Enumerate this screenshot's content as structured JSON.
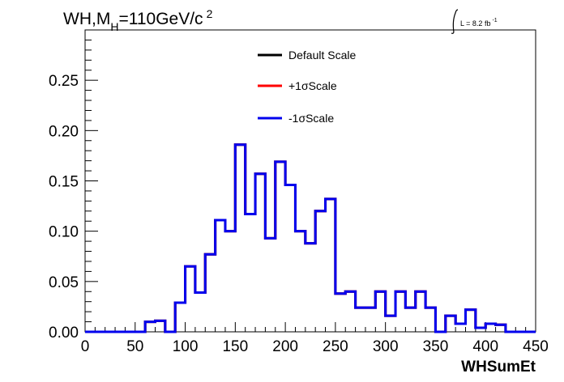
{
  "chart_data": {
    "type": "line",
    "title_parts": {
      "main": "WH,M",
      "sub": "H",
      "rest": "=110GeV/c",
      "sup": "2"
    },
    "lumi": {
      "text": "L = 8.2 fb",
      "sup": "-1"
    },
    "xlabel": "WHSumEt",
    "ylabel": "",
    "xlim": [
      0,
      450
    ],
    "ylim": [
      0,
      0.3
    ],
    "x_ticks": [
      0,
      50,
      100,
      150,
      200,
      250,
      300,
      350,
      400,
      450
    ],
    "x_tick_labels": [
      "0",
      "50",
      "100",
      "150",
      "200",
      "250",
      "300",
      "350",
      "400",
      "450"
    ],
    "y_ticks": [
      0,
      0.05,
      0.1,
      0.15,
      0.2,
      0.25
    ],
    "y_tick_labels": [
      "0.00",
      "0.05",
      "0.10",
      "0.15",
      "0.20",
      "0.25"
    ],
    "grid": false,
    "legend_position": "top-center",
    "bin_edges": [
      0,
      10,
      20,
      30,
      40,
      50,
      60,
      70,
      80,
      90,
      100,
      110,
      120,
      130,
      140,
      150,
      160,
      170,
      180,
      190,
      200,
      210,
      220,
      230,
      240,
      250,
      260,
      270,
      280,
      290,
      300,
      310,
      320,
      330,
      340,
      350,
      360,
      370,
      380,
      390,
      400,
      410,
      420,
      430,
      440,
      450
    ],
    "series": [
      {
        "name": "Default Scale",
        "color": "#000000",
        "values": [
          0,
          0,
          0,
          0,
          0,
          0,
          0.01,
          0.011,
          0,
          0.029,
          0.065,
          0.039,
          0.077,
          0.111,
          0.1,
          0.186,
          0.117,
          0.157,
          0.093,
          0.169,
          0.146,
          0.1,
          0.088,
          0.12,
          0.132,
          0.038,
          0.04,
          0.024,
          0.024,
          0.04,
          0.016,
          0.04,
          0.024,
          0.04,
          0.024,
          0,
          0.016,
          0.008,
          0.022,
          0.004,
          0.008,
          0.007,
          0,
          0,
          0,
          0
        ]
      },
      {
        "name": "+1σScale",
        "color": "#ff0000",
        "values": [
          0,
          0,
          0,
          0,
          0,
          0,
          0.01,
          0.011,
          0,
          0.029,
          0.065,
          0.039,
          0.077,
          0.111,
          0.1,
          0.186,
          0.117,
          0.157,
          0.093,
          0.169,
          0.146,
          0.1,
          0.088,
          0.12,
          0.132,
          0.038,
          0.04,
          0.024,
          0.024,
          0.04,
          0.016,
          0.04,
          0.024,
          0.04,
          0.024,
          0,
          0.016,
          0.008,
          0.022,
          0.004,
          0.008,
          0.007,
          0,
          0,
          0,
          0
        ]
      },
      {
        "name": "-1σScale",
        "color": "#0000ee",
        "values": [
          0,
          0,
          0,
          0,
          0,
          0,
          0.01,
          0.011,
          0,
          0.029,
          0.065,
          0.039,
          0.077,
          0.111,
          0.1,
          0.186,
          0.117,
          0.157,
          0.093,
          0.169,
          0.146,
          0.1,
          0.088,
          0.12,
          0.132,
          0.038,
          0.04,
          0.024,
          0.024,
          0.04,
          0.016,
          0.04,
          0.024,
          0.04,
          0.024,
          0,
          0.016,
          0.008,
          0.022,
          0.004,
          0.008,
          0.007,
          0,
          0,
          0,
          0
        ]
      }
    ]
  }
}
